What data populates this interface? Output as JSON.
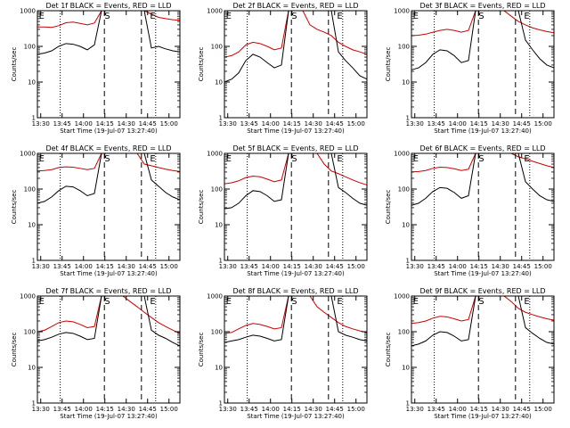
{
  "chart_data": [
    {
      "type": "line",
      "title": "Det 1f BLACK = Events, RED = LLD",
      "xlabel": "Start Time (19-Jul-07 13:27:40)",
      "ylabel": "Counts/sec",
      "x_ticks": [
        "13:30",
        "13:45",
        "14:00",
        "14:15",
        "14:30",
        "14:45",
        "15:00"
      ],
      "y_ticks": [
        "1",
        "10",
        "100",
        "1000"
      ],
      "ylim": [
        1,
        1000
      ],
      "y_scale": "log",
      "markers": [
        "E",
        "S",
        "E"
      ],
      "series": [
        {
          "color": "#cc0000",
          "x": [
            0,
            5,
            10,
            15,
            20,
            25,
            30,
            35,
            40,
            45,
            50,
            55,
            60,
            65,
            70,
            75,
            80,
            85,
            90,
            95,
            100
          ],
          "y": [
            350,
            350,
            340,
            380,
            460,
            480,
            440,
            400,
            450,
            1000,
            1000,
            1000,
            1000,
            1000,
            1000,
            1000,
            800,
            650,
            600,
            560,
            540
          ]
        },
        {
          "color": "#000000",
          "x": [
            0,
            5,
            10,
            15,
            20,
            25,
            30,
            35,
            40,
            45,
            50,
            55,
            60,
            65,
            70,
            75,
            80,
            85,
            90,
            95,
            100
          ],
          "y": [
            60,
            65,
            75,
            100,
            120,
            115,
            100,
            80,
            110,
            1000,
            1000,
            1000,
            1000,
            1000,
            1000,
            1000,
            90,
            100,
            85,
            75,
            70
          ]
        }
      ]
    },
    {
      "type": "line",
      "title": "Det 2f BLACK = Events, RED = LLD",
      "xlabel": "Start Time (19-Jul-07 13:27:40)",
      "ylabel": "Counts/sec",
      "x_ticks": [
        "13:30",
        "13:45",
        "14:00",
        "14:15",
        "14:30",
        "14:45",
        "15:00"
      ],
      "y_ticks": [
        "1",
        "10",
        "100",
        "1000"
      ],
      "ylim": [
        1,
        1000
      ],
      "y_scale": "log",
      "markers": [
        "E",
        "S",
        "E"
      ],
      "series": [
        {
          "color": "#cc0000",
          "x": [
            0,
            5,
            10,
            15,
            20,
            25,
            30,
            35,
            40,
            45,
            50,
            55,
            60,
            65,
            70,
            75,
            80,
            85,
            90,
            95,
            100
          ],
          "y": [
            50,
            55,
            70,
            110,
            130,
            120,
            100,
            80,
            90,
            1000,
            1000,
            1000,
            400,
            300,
            250,
            200,
            130,
            100,
            80,
            70,
            60
          ]
        },
        {
          "color": "#000000",
          "x": [
            0,
            5,
            10,
            15,
            20,
            25,
            30,
            35,
            40,
            45,
            50,
            55,
            60,
            65,
            70,
            75,
            80,
            85,
            90,
            95,
            100
          ],
          "y": [
            10,
            12,
            18,
            40,
            60,
            50,
            35,
            25,
            30,
            1000,
            1000,
            1000,
            1000,
            1000,
            1000,
            1000,
            70,
            40,
            25,
            15,
            12
          ]
        }
      ]
    },
    {
      "type": "line",
      "title": "Det 3f BLACK = Events, RED = LLD",
      "xlabel": "Start Time (19-Jul-07 13:27:40)",
      "ylabel": "Counts/sec",
      "x_ticks": [
        "13:30",
        "13:45",
        "14:00",
        "14:15",
        "14:30",
        "14:45",
        "15:00"
      ],
      "y_ticks": [
        "1",
        "10",
        "100",
        "1000"
      ],
      "ylim": [
        1,
        1000
      ],
      "y_scale": "log",
      "markers": [
        "E",
        "S",
        "E"
      ],
      "series": [
        {
          "color": "#cc0000",
          "x": [
            0,
            5,
            10,
            15,
            20,
            25,
            30,
            35,
            40,
            45,
            50,
            55,
            60,
            65,
            70,
            75,
            80,
            85,
            90,
            95,
            100
          ],
          "y": [
            200,
            205,
            220,
            250,
            280,
            300,
            280,
            250,
            280,
            1000,
            1000,
            1000,
            1000,
            1000,
            700,
            500,
            400,
            330,
            290,
            260,
            240
          ]
        },
        {
          "color": "#000000",
          "x": [
            0,
            5,
            10,
            15,
            20,
            25,
            30,
            35,
            40,
            45,
            50,
            55,
            60,
            65,
            70,
            75,
            80,
            85,
            90,
            95,
            100
          ],
          "y": [
            22,
            25,
            35,
            60,
            80,
            75,
            55,
            35,
            40,
            1000,
            1000,
            1000,
            1000,
            1000,
            1000,
            1000,
            150,
            80,
            45,
            30,
            25
          ]
        }
      ]
    },
    {
      "type": "line",
      "title": "Det 4f BLACK = Events, RED = LLD",
      "xlabel": "Start Time (19-Jul-07 13:27:40)",
      "ylabel": "Counts/sec",
      "x_ticks": [
        "13:30",
        "13:45",
        "14:00",
        "14:15",
        "14:30",
        "14:45",
        "15:00"
      ],
      "y_ticks": [
        "1",
        "10",
        "100",
        "1000"
      ],
      "ylim": [
        1,
        1000
      ],
      "y_scale": "log",
      "markers": [
        "E",
        "S",
        "E"
      ],
      "series": [
        {
          "color": "#cc0000",
          "x": [
            0,
            5,
            10,
            15,
            20,
            25,
            30,
            35,
            40,
            45,
            50,
            55,
            60,
            65,
            70,
            75,
            80,
            85,
            90,
            95,
            100
          ],
          "y": [
            320,
            330,
            350,
            400,
            420,
            410,
            380,
            350,
            380,
            1000,
            1000,
            1000,
            1000,
            1000,
            1000,
            500,
            450,
            400,
            360,
            330,
            310
          ]
        },
        {
          "color": "#000000",
          "x": [
            0,
            5,
            10,
            15,
            20,
            25,
            30,
            35,
            40,
            45,
            50,
            55,
            60,
            65,
            70,
            75,
            80,
            85,
            90,
            95,
            100
          ],
          "y": [
            40,
            45,
            60,
            90,
            120,
            115,
            90,
            65,
            75,
            1000,
            1000,
            1000,
            1000,
            1000,
            1000,
            1000,
            180,
            120,
            80,
            60,
            50
          ]
        }
      ]
    },
    {
      "type": "line",
      "title": "Det 5f BLACK = Events, RED = LLD",
      "xlabel": "Start Time (19-Jul-07 13:27:40)",
      "ylabel": "Counts/sec",
      "x_ticks": [
        "13:30",
        "13:45",
        "14:00",
        "14:15",
        "14:30",
        "14:45",
        "15:00"
      ],
      "y_ticks": [
        "1",
        "10",
        "100",
        "1000"
      ],
      "ylim": [
        1,
        1000
      ],
      "y_scale": "log",
      "markers": [
        "E",
        "S",
        "E"
      ],
      "series": [
        {
          "color": "#cc0000",
          "x": [
            0,
            5,
            10,
            15,
            20,
            25,
            30,
            35,
            40,
            45,
            50,
            55,
            60,
            65,
            70,
            75,
            80,
            85,
            90,
            95,
            100
          ],
          "y": [
            140,
            150,
            170,
            210,
            230,
            220,
            190,
            160,
            180,
            1000,
            1000,
            1000,
            1000,
            1000,
            500,
            320,
            270,
            220,
            180,
            150,
            130
          ]
        },
        {
          "color": "#000000",
          "x": [
            0,
            5,
            10,
            15,
            20,
            25,
            30,
            35,
            40,
            45,
            50,
            55,
            60,
            65,
            70,
            75,
            80,
            85,
            90,
            95,
            100
          ],
          "y": [
            28,
            30,
            40,
            65,
            90,
            85,
            65,
            45,
            50,
            1000,
            1000,
            1000,
            1000,
            1000,
            1000,
            1000,
            110,
            80,
            55,
            40,
            35
          ]
        }
      ]
    },
    {
      "type": "line",
      "title": "Det 6f BLACK = Events, RED = LLD",
      "xlabel": "Start Time (19-Jul-07 13:27:40)",
      "ylabel": "Counts/sec",
      "x_ticks": [
        "13:30",
        "13:45",
        "14:00",
        "14:15",
        "14:30",
        "14:45",
        "15:00"
      ],
      "y_ticks": [
        "1",
        "10",
        "100",
        "1000"
      ],
      "ylim": [
        1,
        1000
      ],
      "y_scale": "log",
      "markers": [
        "E",
        "S",
        "E"
      ],
      "series": [
        {
          "color": "#cc0000",
          "x": [
            0,
            5,
            10,
            15,
            20,
            25,
            30,
            35,
            40,
            45,
            50,
            55,
            60,
            65,
            70,
            75,
            80,
            85,
            90,
            95,
            100
          ],
          "y": [
            300,
            310,
            330,
            380,
            410,
            400,
            370,
            330,
            360,
            1000,
            1000,
            1000,
            1000,
            1000,
            1000,
            800,
            700,
            600,
            520,
            450,
            400
          ]
        },
        {
          "color": "#000000",
          "x": [
            0,
            5,
            10,
            15,
            20,
            25,
            30,
            35,
            40,
            45,
            50,
            55,
            60,
            65,
            70,
            75,
            80,
            85,
            90,
            95,
            100
          ],
          "y": [
            35,
            40,
            55,
            85,
            110,
            105,
            80,
            55,
            65,
            1000,
            1000,
            1000,
            1000,
            1000,
            1000,
            1000,
            160,
            100,
            65,
            50,
            45
          ]
        }
      ]
    },
    {
      "type": "line",
      "title": "Det 7f BLACK = Events, RED = LLD",
      "xlabel": "Start Time (19-Jul-07 13:27:40)",
      "ylabel": "Counts/sec",
      "x_ticks": [
        "13:30",
        "13:45",
        "14:00",
        "14:15",
        "14:30",
        "14:45",
        "15:00"
      ],
      "y_ticks": [
        "1",
        "10",
        "100",
        "1000"
      ],
      "ylim": [
        1,
        1000
      ],
      "y_scale": "log",
      "markers": [
        "E",
        "S",
        "E"
      ],
      "series": [
        {
          "color": "#cc0000",
          "x": [
            0,
            5,
            10,
            15,
            20,
            25,
            30,
            35,
            40,
            45,
            50,
            55,
            60,
            65,
            70,
            75,
            80,
            85,
            90,
            95,
            100
          ],
          "y": [
            100,
            110,
            140,
            180,
            200,
            190,
            160,
            130,
            140,
            1000,
            1000,
            1000,
            1000,
            700,
            500,
            350,
            250,
            180,
            140,
            110,
            90
          ]
        },
        {
          "color": "#000000",
          "x": [
            0,
            5,
            10,
            15,
            20,
            25,
            30,
            35,
            40,
            45,
            50,
            55,
            60,
            65,
            70,
            75,
            80,
            85,
            90,
            95,
            100
          ],
          "y": [
            55,
            60,
            70,
            85,
            95,
            90,
            75,
            60,
            65,
            1000,
            1000,
            1000,
            1000,
            1000,
            1000,
            1000,
            110,
            80,
            65,
            50,
            40
          ]
        }
      ]
    },
    {
      "type": "line",
      "title": "Det 8f BLACK = Events, RED = LLD",
      "xlabel": "Start Time (19-Jul-07 13:27:40)",
      "ylabel": "Counts/sec",
      "x_ticks": [
        "13:30",
        "13:45",
        "14:00",
        "14:15",
        "14:30",
        "14:45",
        "15:00"
      ],
      "y_ticks": [
        "1",
        "10",
        "100",
        "1000"
      ],
      "ylim": [
        1,
        1000
      ],
      "y_scale": "log",
      "markers": [
        "E",
        "S",
        "E"
      ],
      "series": [
        {
          "color": "#cc0000",
          "x": [
            0,
            5,
            10,
            15,
            20,
            25,
            30,
            35,
            40,
            45,
            50,
            55,
            60,
            65,
            70,
            75,
            80,
            85,
            90,
            95,
            100
          ],
          "y": [
            90,
            95,
            120,
            150,
            170,
            160,
            140,
            120,
            130,
            1000,
            1000,
            1000,
            1000,
            500,
            350,
            250,
            180,
            140,
            120,
            105,
            95
          ]
        },
        {
          "color": "#000000",
          "x": [
            0,
            5,
            10,
            15,
            20,
            25,
            30,
            35,
            40,
            45,
            50,
            55,
            60,
            65,
            70,
            75,
            80,
            85,
            90,
            95,
            100
          ],
          "y": [
            50,
            55,
            60,
            70,
            80,
            75,
            65,
            55,
            60,
            1000,
            1000,
            1000,
            1000,
            1000,
            1000,
            1000,
            100,
            80,
            70,
            60,
            55
          ]
        }
      ]
    },
    {
      "type": "line",
      "title": "Det 9f BLACK = Events, RED = LLD",
      "xlabel": "Start Time (19-Jul-07 13:27:40)",
      "ylabel": "Counts/sec",
      "x_ticks": [
        "13:30",
        "13:45",
        "14:00",
        "14:15",
        "14:30",
        "14:45",
        "15:00"
      ],
      "y_ticks": [
        "1",
        "10",
        "100",
        "1000"
      ],
      "ylim": [
        1,
        1000
      ],
      "y_scale": "log",
      "markers": [
        "E",
        "S",
        "E"
      ],
      "series": [
        {
          "color": "#cc0000",
          "x": [
            0,
            5,
            10,
            15,
            20,
            25,
            30,
            35,
            40,
            45,
            50,
            55,
            60,
            65,
            70,
            75,
            80,
            85,
            90,
            95,
            100
          ],
          "y": [
            170,
            180,
            200,
            240,
            270,
            260,
            230,
            200,
            220,
            1000,
            1000,
            1000,
            1000,
            1000,
            700,
            450,
            350,
            300,
            260,
            230,
            210
          ]
        },
        {
          "color": "#000000",
          "x": [
            0,
            5,
            10,
            15,
            20,
            25,
            30,
            35,
            40,
            45,
            50,
            55,
            60,
            65,
            70,
            75,
            80,
            85,
            90,
            95,
            100
          ],
          "y": [
            40,
            45,
            55,
            80,
            100,
            95,
            75,
            55,
            60,
            1000,
            1000,
            1000,
            1000,
            1000,
            1000,
            1000,
            130,
            90,
            65,
            50,
            45
          ]
        }
      ]
    }
  ]
}
